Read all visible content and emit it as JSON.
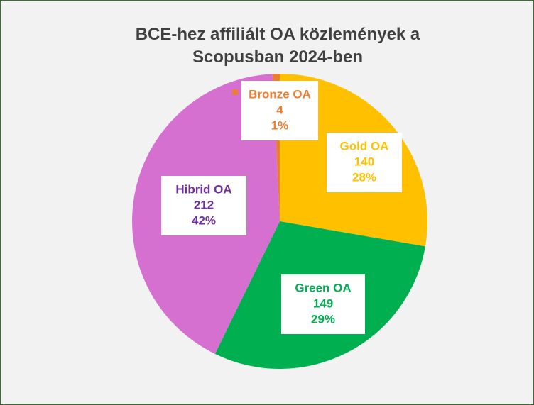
{
  "chart_data": {
    "type": "pie",
    "title": "BCE-hez affiliált OA közlemények a Scopusban 2024-ben",
    "categories": [
      "Gold OA",
      "Green OA",
      "Hibrid OA",
      "Bronze OA"
    ],
    "values": [
      140,
      149,
      212,
      4
    ],
    "percent_labels": [
      "28%",
      "29%",
      "42%",
      "1%"
    ],
    "colors": [
      "#ffc000",
      "#00b050",
      "#d670d0",
      "#ed7d31"
    ],
    "label_colors": [
      "#ffc000",
      "#00b050",
      "#7030a0",
      "#ed7d31"
    ]
  }
}
